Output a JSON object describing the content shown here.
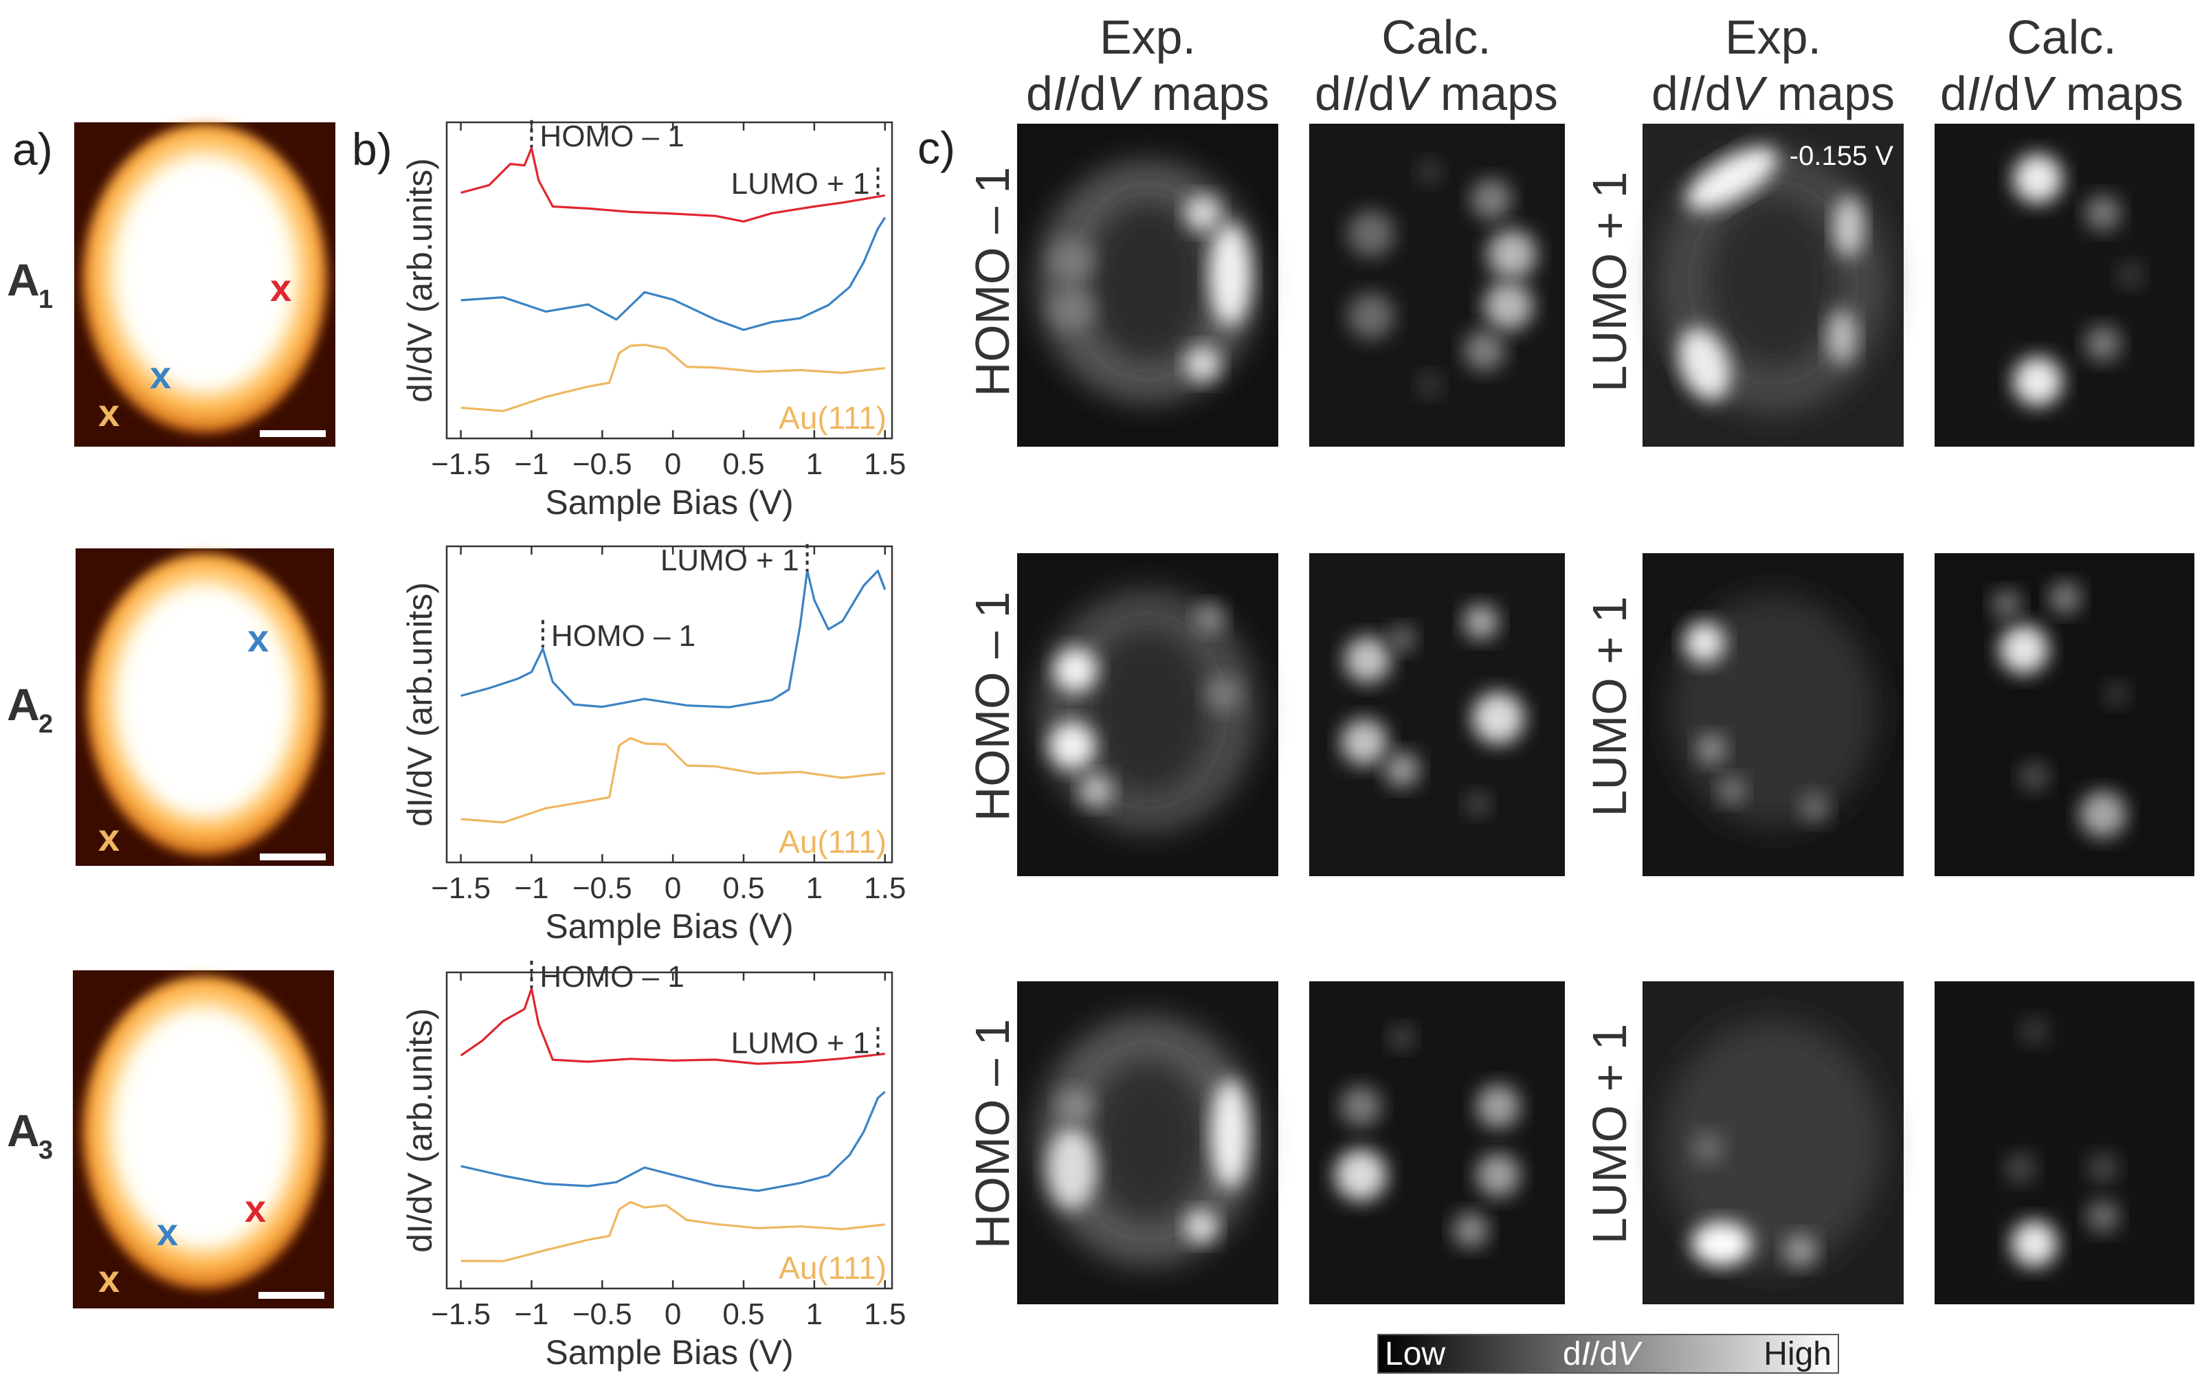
{
  "panel_labels": {
    "a": "a)",
    "b": "b)",
    "c": "c)"
  },
  "rows": [
    {
      "name_main": "A",
      "name_sub": "1",
      "scalebar_label": ""
    },
    {
      "name_main": "A",
      "name_sub": "2",
      "scalebar_label": ""
    },
    {
      "name_main": "A",
      "name_sub": "3",
      "scalebar_label": ""
    }
  ],
  "col_headers": [
    {
      "line1": "Exp.",
      "line2_a": "d",
      "line2_b": "I",
      "line2_c": "/d",
      "line2_d": "V",
      "line2_e": " maps"
    },
    {
      "line1": "Calc.",
      "line2_a": "d",
      "line2_b": "I",
      "line2_c": "/d",
      "line2_d": "V",
      "line2_e": " maps"
    },
    {
      "line1": "Exp.",
      "line2_a": "d",
      "line2_b": "I",
      "line2_c": "/d",
      "line2_d": "V",
      "line2_e": " maps"
    },
    {
      "line1": "Calc.",
      "line2_a": "d",
      "line2_b": "I",
      "line2_c": "/d",
      "line2_d": "V",
      "line2_e": " maps"
    }
  ],
  "orbital_labels": {
    "homo": "HOMO – 1",
    "lumo": "LUMO + 1"
  },
  "map_annotation": "-0.155 V",
  "colorbar": {
    "low": "Low",
    "mid_a": "d",
    "mid_b": "I",
    "mid_c": "/d",
    "mid_d": "V",
    "high": "High"
  },
  "marker_symbol": "x",
  "colors": {
    "red_trace": "#e0262f",
    "blue_trace": "#3b82c4",
    "gold_trace": "#efb760",
    "gold_label": "#efb760",
    "text": "#222222"
  },
  "chart_data": [
    {
      "type": "line",
      "title": "",
      "xlabel": "Sample Bias (V)",
      "ylabel": "dI/dV (arb.units)",
      "xlim": [
        -1.6,
        1.55
      ],
      "x_ticks": [
        "-1.5",
        "-1",
        "-0.5",
        "0",
        "0.5",
        "1",
        "1.5"
      ],
      "annotations": [
        {
          "text": "HOMO – 1",
          "x": -1.0
        },
        {
          "text": "LUMO + 1",
          "x": 1.45
        }
      ],
      "series": [
        {
          "name": "red",
          "color": "#e0262f",
          "x": [
            -1.5,
            -1.3,
            -1.15,
            -1.05,
            -1.0,
            -0.95,
            -0.85,
            -0.6,
            -0.3,
            0,
            0.3,
            0.5,
            0.7,
            1.0,
            1.2,
            1.5
          ],
          "y": [
            0.78,
            0.8,
            0.87,
            0.86,
            0.92,
            0.82,
            0.73,
            0.73,
            0.72,
            0.71,
            0.7,
            0.69,
            0.71,
            0.73,
            0.75,
            0.77
          ]
        },
        {
          "name": "blue",
          "color": "#3b82c4",
          "x": [
            -1.5,
            -1.2,
            -0.9,
            -0.6,
            -0.4,
            -0.2,
            0,
            0.3,
            0.5,
            0.7,
            0.9,
            1.1,
            1.25,
            1.35,
            1.45,
            1.5
          ],
          "y": [
            0.44,
            0.45,
            0.4,
            0.42,
            0.38,
            0.46,
            0.44,
            0.38,
            0.34,
            0.37,
            0.38,
            0.42,
            0.48,
            0.56,
            0.66,
            0.7
          ]
        },
        {
          "name": "Au(111)",
          "color": "#efb760",
          "x": [
            -1.5,
            -1.2,
            -0.9,
            -0.6,
            -0.45,
            -0.38,
            -0.3,
            -0.2,
            -0.05,
            0.1,
            0.3,
            0.6,
            0.9,
            1.2,
            1.5
          ],
          "y": [
            0.1,
            0.09,
            0.13,
            0.16,
            0.18,
            0.27,
            0.29,
            0.3,
            0.28,
            0.23,
            0.22,
            0.21,
            0.22,
            0.21,
            0.22
          ]
        }
      ],
      "substrate_label": "Au(111)"
    },
    {
      "type": "line",
      "title": "",
      "xlabel": "Sample Bias (V)",
      "ylabel": "dI/dV (arb.units)",
      "xlim": [
        -1.6,
        1.55
      ],
      "x_ticks": [
        "-1.5",
        "-1",
        "-0.5",
        "0",
        "0.5",
        "1",
        "1.5"
      ],
      "annotations": [
        {
          "text": "HOMO – 1",
          "x": -0.92
        },
        {
          "text": "LUMO + 1",
          "x": 0.95
        }
      ],
      "series": [
        {
          "name": "blue",
          "color": "#3b82c4",
          "x": [
            -1.5,
            -1.3,
            -1.1,
            -1.0,
            -0.92,
            -0.85,
            -0.7,
            -0.5,
            -0.2,
            0.1,
            0.4,
            0.7,
            0.82,
            0.9,
            0.95,
            1.0,
            1.1,
            1.2,
            1.35,
            1.45,
            1.5
          ],
          "y": [
            0.53,
            0.55,
            0.58,
            0.6,
            0.68,
            0.57,
            0.5,
            0.49,
            0.52,
            0.5,
            0.49,
            0.51,
            0.55,
            0.75,
            0.92,
            0.83,
            0.74,
            0.76,
            0.88,
            0.92,
            0.86
          ]
        },
        {
          "name": "Au(111)",
          "color": "#efb760",
          "x": [
            -1.5,
            -1.2,
            -0.9,
            -0.6,
            -0.45,
            -0.38,
            -0.3,
            -0.2,
            -0.05,
            0.1,
            0.3,
            0.6,
            0.9,
            1.2,
            1.5
          ],
          "y": [
            0.14,
            0.13,
            0.17,
            0.19,
            0.21,
            0.37,
            0.39,
            0.38,
            0.37,
            0.31,
            0.3,
            0.28,
            0.29,
            0.27,
            0.28
          ]
        }
      ],
      "substrate_label": "Au(111)"
    },
    {
      "type": "line",
      "title": "",
      "xlabel": "Sample Bias (V)",
      "ylabel": "dI/dV (arb.units)",
      "xlim": [
        -1.6,
        1.55
      ],
      "x_ticks": [
        "-1.5",
        "-1",
        "-0.5",
        "0",
        "0.5",
        "1",
        "1.5"
      ],
      "annotations": [
        {
          "text": "HOMO – 1",
          "x": -1.0
        },
        {
          "text": "LUMO + 1",
          "x": 1.45
        }
      ],
      "series": [
        {
          "name": "red",
          "color": "#e0262f",
          "x": [
            -1.5,
            -1.35,
            -1.2,
            -1.05,
            -1.0,
            -0.95,
            -0.85,
            -0.6,
            -0.3,
            0,
            0.3,
            0.6,
            0.9,
            1.2,
            1.5
          ],
          "y": [
            0.74,
            0.78,
            0.85,
            0.88,
            0.95,
            0.84,
            0.72,
            0.72,
            0.73,
            0.72,
            0.72,
            0.71,
            0.72,
            0.73,
            0.74
          ]
        },
        {
          "name": "blue",
          "color": "#3b82c4",
          "x": [
            -1.5,
            -1.2,
            -0.9,
            -0.6,
            -0.4,
            -0.2,
            0,
            0.3,
            0.6,
            0.9,
            1.1,
            1.25,
            1.35,
            1.45,
            1.5
          ],
          "y": [
            0.39,
            0.36,
            0.33,
            0.32,
            0.34,
            0.38,
            0.36,
            0.33,
            0.31,
            0.33,
            0.36,
            0.42,
            0.5,
            0.6,
            0.62
          ]
        },
        {
          "name": "Au(111)",
          "color": "#efb760",
          "x": [
            -1.5,
            -1.2,
            -0.9,
            -0.6,
            -0.45,
            -0.38,
            -0.3,
            -0.2,
            -0.05,
            0.1,
            0.3,
            0.6,
            0.9,
            1.2,
            1.5
          ],
          "y": [
            0.09,
            0.09,
            0.12,
            0.15,
            0.17,
            0.25,
            0.27,
            0.26,
            0.26,
            0.22,
            0.2,
            0.19,
            0.2,
            0.19,
            0.2
          ]
        }
      ],
      "substrate_label": "Au(111)"
    }
  ]
}
